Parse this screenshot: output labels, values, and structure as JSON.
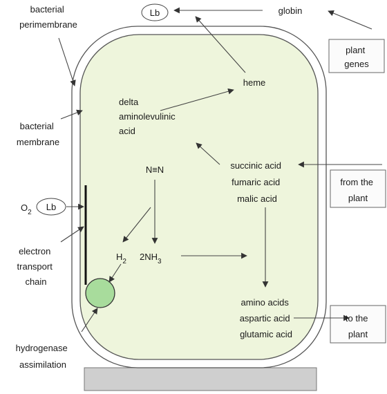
{
  "labels": {
    "lb_top": "Lb",
    "globin": "globin",
    "bacterial_perimembrane": [
      "bacterial",
      "perimembrane"
    ],
    "plant_genes": [
      "plant",
      "genes"
    ],
    "heme": "heme",
    "delta_ala": [
      "delta",
      "aminolevulinic",
      "acid"
    ],
    "bacterial_membrane": [
      "bacterial",
      "membrane"
    ],
    "n2": "N≡N",
    "acids_in": [
      "succinic acid",
      "fumaric acid",
      "malic acid"
    ],
    "from_the_plant": [
      "from the",
      "plant"
    ],
    "o2": "O",
    "o2_sub": "2",
    "lb_left": "Lb",
    "electron_transport_chain": [
      "electron",
      "transport",
      "chain"
    ],
    "h2": "H",
    "h2_sub": "2",
    "nh3": "2NH",
    "nh3_sub": "3",
    "amino_acids": [
      "amino acids",
      "aspartic acid",
      "glutamic acid"
    ],
    "to_the_plant": [
      "to the",
      "plant"
    ],
    "hydrogenase_assimilation": [
      "hydrogenase",
      "assimilation"
    ]
  },
  "colors": {
    "cell_fill": "#eef5dc",
    "hydrogenase_fill": "#a8dc9c",
    "base_fill": "#cfcfcf",
    "box_fill": "#fbfbfb",
    "stroke": "#555555"
  }
}
